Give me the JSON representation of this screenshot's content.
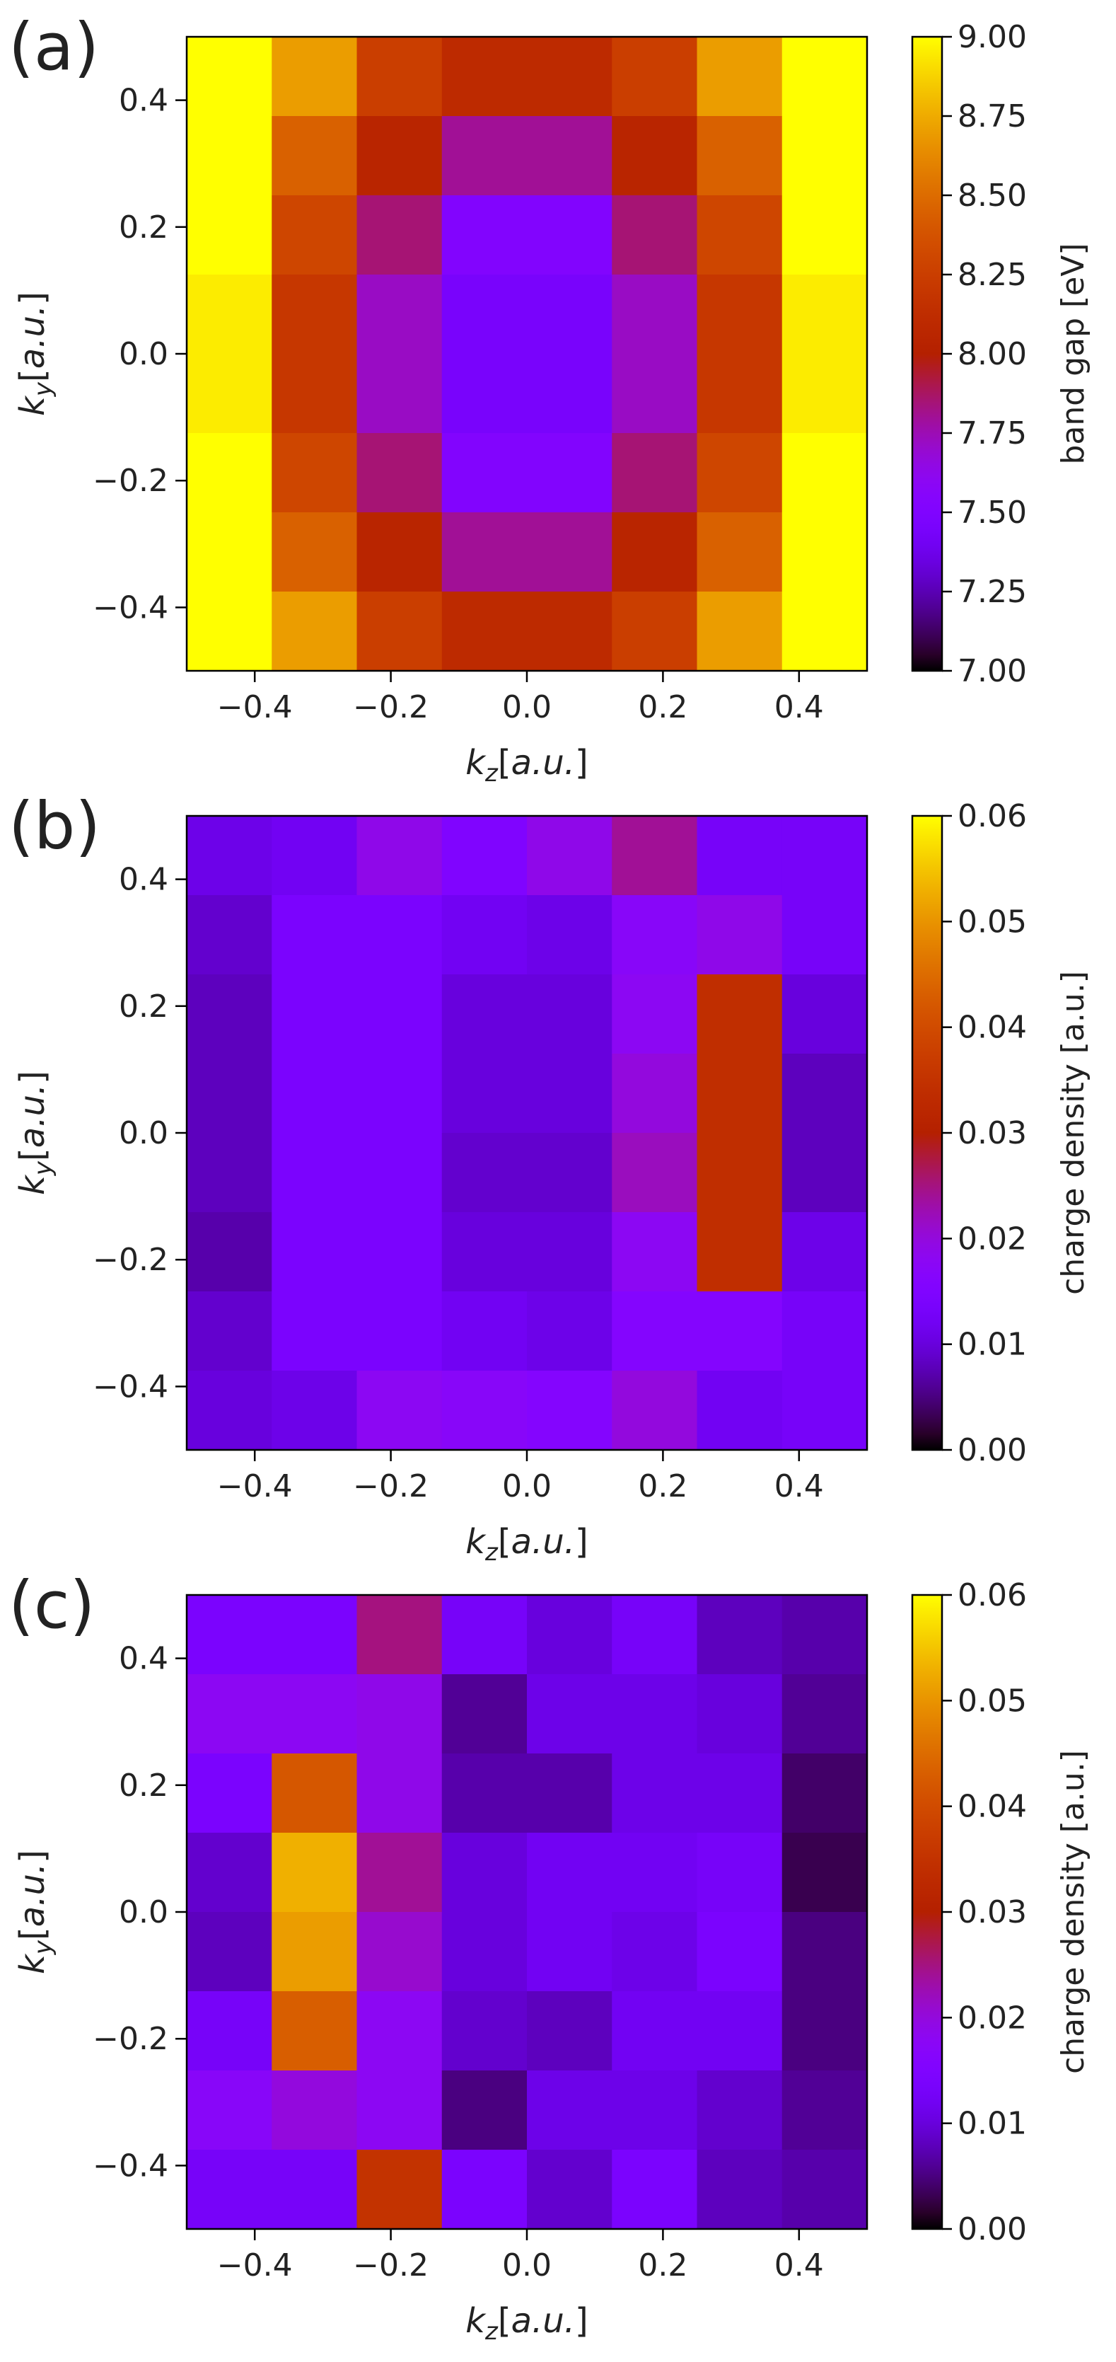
{
  "chart_data": [
    {
      "type": "heatmap",
      "panel_label": "(a)",
      "xlabel": "k_z[a.u.]",
      "ylabel": "k_y[a.u.]",
      "xlim": [
        -0.5,
        0.5
      ],
      "ylim": [
        -0.5,
        0.5
      ],
      "x_ticks": [
        -0.4,
        -0.2,
        0.0,
        0.2,
        0.4
      ],
      "x_tick_labels": [
        "−0.4",
        "−0.2",
        "0.0",
        "0.2",
        "0.4"
      ],
      "y_ticks": [
        -0.4,
        -0.2,
        0.0,
        0.2,
        0.4
      ],
      "y_tick_labels": [
        "−0.4",
        "−0.2",
        "0.0",
        "0.2",
        "0.4"
      ],
      "colormap": "gnuplot",
      "colorbar": {
        "label": "band gap [eV]",
        "vmin": 7.0,
        "vmax": 9.0,
        "ticks": [
          7.0,
          7.25,
          7.5,
          7.75,
          8.0,
          8.25,
          8.5,
          8.75,
          9.0
        ],
        "tick_labels": [
          "7.00",
          "7.25",
          "7.50",
          "7.75",
          "8.00",
          "8.25",
          "8.50",
          "8.75",
          "9.00"
        ]
      },
      "grid_rows_top_to_bottom": [
        [
          9.0,
          8.7,
          8.25,
          8.1,
          8.1,
          8.25,
          8.7,
          9.0
        ],
        [
          9.0,
          8.45,
          8.05,
          7.8,
          7.8,
          8.05,
          8.45,
          9.0
        ],
        [
          9.0,
          8.3,
          7.85,
          7.52,
          7.52,
          7.85,
          8.3,
          9.0
        ],
        [
          8.95,
          8.2,
          7.72,
          7.45,
          7.45,
          7.72,
          8.2,
          8.95
        ],
        [
          8.95,
          8.2,
          7.72,
          7.45,
          7.45,
          7.72,
          8.2,
          8.95
        ],
        [
          9.0,
          8.3,
          7.85,
          7.52,
          7.52,
          7.85,
          8.3,
          9.0
        ],
        [
          9.0,
          8.45,
          8.05,
          7.8,
          7.8,
          8.05,
          8.45,
          9.0
        ],
        [
          9.0,
          8.7,
          8.25,
          8.1,
          8.1,
          8.25,
          8.7,
          9.0
        ]
      ]
    },
    {
      "type": "heatmap",
      "panel_label": "(b)",
      "xlabel": "k_z[a.u.]",
      "ylabel": "k_y[a.u.]",
      "xlim": [
        -0.5,
        0.5
      ],
      "ylim": [
        -0.5,
        0.5
      ],
      "x_ticks": [
        -0.4,
        -0.2,
        0.0,
        0.2,
        0.4
      ],
      "x_tick_labels": [
        "−0.4",
        "−0.2",
        "0.0",
        "0.2",
        "0.4"
      ],
      "y_ticks": [
        -0.4,
        -0.2,
        0.0,
        0.2,
        0.4
      ],
      "y_tick_labels": [
        "−0.4",
        "−0.2",
        "0.0",
        "0.2",
        "0.4"
      ],
      "colormap": "gnuplot",
      "colorbar": {
        "label": "charge density [a.u.]",
        "vmin": 0.0,
        "vmax": 0.06,
        "ticks": [
          0.0,
          0.01,
          0.02,
          0.03,
          0.04,
          0.05,
          0.06
        ],
        "tick_labels": [
          "0.00",
          "0.01",
          "0.02",
          "0.03",
          "0.04",
          "0.05",
          "0.06"
        ]
      },
      "grid_rows_top_to_bottom": [
        [
          0.011,
          0.012,
          0.019,
          0.015,
          0.019,
          0.024,
          0.013,
          0.013
        ],
        [
          0.009,
          0.014,
          0.014,
          0.012,
          0.011,
          0.017,
          0.019,
          0.013
        ],
        [
          0.008,
          0.014,
          0.014,
          0.01,
          0.01,
          0.018,
          0.034,
          0.01
        ],
        [
          0.008,
          0.014,
          0.014,
          0.01,
          0.01,
          0.02,
          0.034,
          0.008
        ],
        [
          0.008,
          0.014,
          0.014,
          0.009,
          0.009,
          0.022,
          0.034,
          0.008
        ],
        [
          0.007,
          0.014,
          0.014,
          0.01,
          0.01,
          0.018,
          0.034,
          0.011
        ],
        [
          0.009,
          0.014,
          0.014,
          0.012,
          0.011,
          0.016,
          0.016,
          0.013
        ],
        [
          0.01,
          0.011,
          0.018,
          0.017,
          0.016,
          0.02,
          0.012,
          0.013
        ]
      ]
    },
    {
      "type": "heatmap",
      "panel_label": "(c)",
      "xlabel": "k_z[a.u.]",
      "ylabel": "k_y[a.u.]",
      "xlim": [
        -0.5,
        0.5
      ],
      "ylim": [
        -0.5,
        0.5
      ],
      "x_ticks": [
        -0.4,
        -0.2,
        0.0,
        0.2,
        0.4
      ],
      "x_tick_labels": [
        "−0.4",
        "−0.2",
        "0.0",
        "0.2",
        "0.4"
      ],
      "y_ticks": [
        -0.4,
        -0.2,
        0.0,
        0.2,
        0.4
      ],
      "y_tick_labels": [
        "−0.4",
        "−0.2",
        "0.0",
        "0.2",
        "0.4"
      ],
      "colormap": "gnuplot",
      "colorbar": {
        "label": "charge density [a.u.]",
        "vmin": 0.0,
        "vmax": 0.06,
        "ticks": [
          0.0,
          0.01,
          0.02,
          0.03,
          0.04,
          0.05,
          0.06
        ],
        "tick_labels": [
          "0.00",
          "0.01",
          "0.02",
          "0.03",
          "0.04",
          "0.05",
          "0.06"
        ]
      },
      "grid_rows_top_to_bottom": [
        [
          0.014,
          0.014,
          0.025,
          0.013,
          0.01,
          0.013,
          0.008,
          0.007
        ],
        [
          0.018,
          0.018,
          0.019,
          0.006,
          0.011,
          0.011,
          0.01,
          0.006
        ],
        [
          0.014,
          0.042,
          0.019,
          0.007,
          0.007,
          0.011,
          0.011,
          0.004
        ],
        [
          0.009,
          0.053,
          0.024,
          0.01,
          0.012,
          0.012,
          0.013,
          0.003
        ],
        [
          0.008,
          0.051,
          0.021,
          0.01,
          0.012,
          0.011,
          0.014,
          0.005
        ],
        [
          0.013,
          0.043,
          0.018,
          0.009,
          0.008,
          0.012,
          0.012,
          0.005
        ],
        [
          0.017,
          0.02,
          0.018,
          0.005,
          0.011,
          0.011,
          0.009,
          0.006
        ],
        [
          0.013,
          0.013,
          0.035,
          0.014,
          0.009,
          0.014,
          0.008,
          0.007
        ]
      ]
    }
  ]
}
